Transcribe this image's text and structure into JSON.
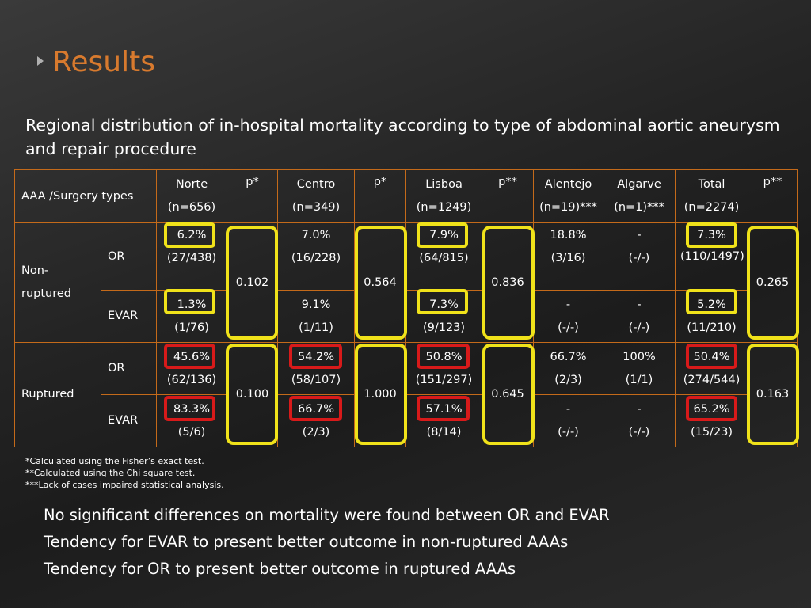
{
  "slide": {
    "title": "Results",
    "subtitle": "Regional distribution of in-hospital mortality according to type of abdominal aortic aneurysm and repair procedure"
  },
  "table": {
    "header": {
      "types": "AAA /Surgery types",
      "norte": "Norte",
      "norte_n": "(n=656)",
      "p1": "p*",
      "centro": "Centro",
      "centro_n": "(n=349)",
      "p2": "p*",
      "lisboa": "Lisboa",
      "lisboa_n": "(n=1249)",
      "p3": "p**",
      "alentejo": "Alentejo",
      "alentejo_n": "(n=19)***",
      "algarve": "Algarve",
      "algarve_n": "(n=1)***",
      "total": "Total",
      "total_n": "(n=2274)",
      "p4": "p**"
    },
    "nonruptured": {
      "label": "Non-ruptured",
      "or": {
        "type": "OR",
        "norte_pct": "6.2%",
        "norte_frac": "(27/438)",
        "centro_pct": "7.0%",
        "centro_frac": "(16/228)",
        "lisboa_pct": "7.9%",
        "lisboa_frac": "(64/815)",
        "alentejo_pct": "18.8%",
        "alentejo_frac": "(3/16)",
        "algarve_pct": "-",
        "algarve_frac": "(-/-)",
        "total_pct": "7.3%",
        "total_frac": "(110/1497)"
      },
      "evar": {
        "type": "EVAR",
        "norte_pct": "1.3%",
        "norte_frac": "(1/76)",
        "centro_pct": "9.1%",
        "centro_frac": "(1/11)",
        "lisboa_pct": "7.3%",
        "lisboa_frac": "(9/123)",
        "alentejo_pct": "-",
        "alentejo_frac": "(-/-)",
        "algarve_pct": "-",
        "algarve_frac": "(-/-)",
        "total_pct": "5.2%",
        "total_frac": "(11/210)"
      },
      "p_norte": "0.102",
      "p_centro": "0.564",
      "p_lisboa": "0.836",
      "p_total": "0.265"
    },
    "ruptured": {
      "label": "Ruptured",
      "or": {
        "type": "OR",
        "norte_pct": "45.6%",
        "norte_frac": "(62/136)",
        "centro_pct": "54.2%",
        "centro_frac": "(58/107)",
        "lisboa_pct": "50.8%",
        "lisboa_frac": "(151/297)",
        "alentejo_pct": "66.7%",
        "alentejo_frac": "(2/3)",
        "algarve_pct": "100%",
        "algarve_frac": "(1/1)",
        "total_pct": "50.4%",
        "total_frac": "(274/544)"
      },
      "evar": {
        "type": "EVAR",
        "norte_pct": "83.3%",
        "norte_frac": "(5/6)",
        "centro_pct": "66.7%",
        "centro_frac": "(2/3)",
        "lisboa_pct": "57.1%",
        "lisboa_frac": "(8/14)",
        "alentejo_pct": "-",
        "alentejo_frac": "(-/-)",
        "algarve_pct": "-",
        "algarve_frac": "(-/-)",
        "total_pct": "65.2%",
        "total_frac": "(15/23)"
      },
      "p_norte": "0.100",
      "p_centro": "1.000",
      "p_lisboa": "0.645",
      "p_total": "0.163"
    }
  },
  "footnotes": [
    "*Calculated using the Fisher’s exact test.",
    "**Calculated using the Chi square test.",
    "***Lack of cases impaired statistical analysis."
  ],
  "findings": [
    "No significant differences on mortality were found between OR and EVAR",
    "Tendency for EVAR to present better outcome in non-ruptured AAAs",
    "Tendency for OR to present better outcome in ruptured AAAs"
  ],
  "colors": {
    "title": "#d87a2e",
    "table_border": "#c46a1a",
    "highlight_nonruptured": "#f0e21a",
    "highlight_ruptured": "#d81a1a",
    "background": "#262626"
  }
}
